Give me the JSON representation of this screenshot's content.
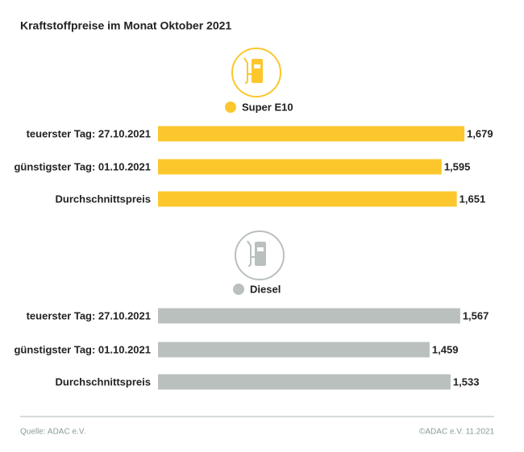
{
  "title": "Kraftstoffpreise im Monat Oktober 2021",
  "source": "Quelle: ADAC e.V.",
  "copyright": "©ADAC e.V. 11.2021",
  "chart_data": [
    {
      "type": "bar",
      "orientation": "horizontal",
      "categories": [
        "teuerster Tag: 27.10.2021",
        "günstigster Tag: 01.10.2021",
        "Durchschnittspreis"
      ],
      "xlim": [
        0.55,
        1.75
      ],
      "series": [
        {
          "name": "Super E10",
          "color": "#fbc72c",
          "values": [
            1.679,
            1.595,
            1.651
          ],
          "value_labels": [
            "1,679",
            "1,595",
            "1,651"
          ]
        }
      ]
    },
    {
      "type": "bar",
      "orientation": "horizontal",
      "categories": [
        "teuerster Tag: 27.10.2021",
        "günstigster Tag: 01.10.2021",
        "Durchschnittspreis"
      ],
      "xlim": [
        0.5,
        1.65
      ],
      "series": [
        {
          "name": "Diesel",
          "color": "#b9c0bd",
          "values": [
            1.567,
            1.459,
            1.533
          ],
          "value_labels": [
            "1,567",
            "1,459",
            "1,533"
          ]
        }
      ]
    }
  ]
}
